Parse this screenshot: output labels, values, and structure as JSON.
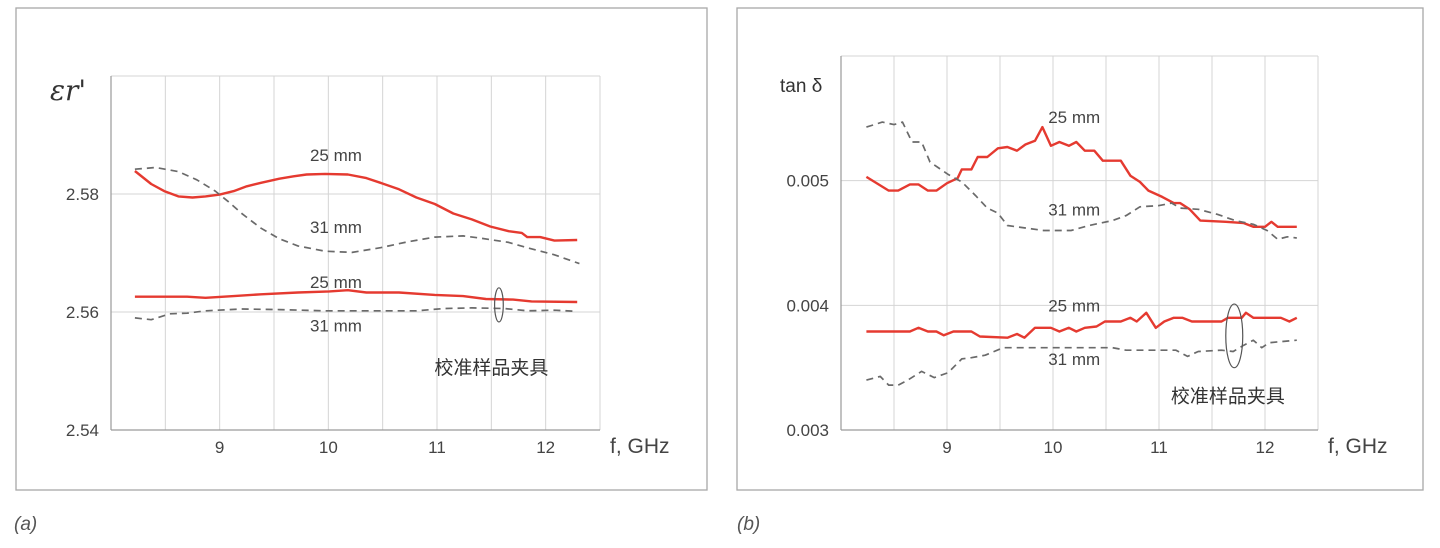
{
  "captions": [
    "(a)",
    "(b)"
  ],
  "colors": {
    "series_25mm": "#e53a30",
    "series_31mm": "#6a6a6a",
    "grid": "#d4d4d4",
    "frame": "#a8a8a8"
  },
  "chart_data": [
    {
      "type": "line",
      "ylabel": "εr'",
      "xlabel": "f, GHz",
      "xlim": [
        8.0,
        12.5
      ],
      "ylim": [
        2.54,
        2.6
      ],
      "xticks": [
        9,
        10,
        11,
        12
      ],
      "yticks": [
        "2.54",
        "2.56",
        "2.58"
      ],
      "grid": true,
      "series": [
        {
          "name": "25 mm",
          "style": "solid",
          "color": "#e53a30",
          "points": [
            [
              8.22,
              2.5839
            ],
            [
              8.37,
              2.5817
            ],
            [
              8.49,
              2.5805
            ],
            [
              8.62,
              2.5796
            ],
            [
              8.75,
              2.5794
            ],
            [
              8.87,
              2.5796
            ],
            [
              9.0,
              2.5799
            ],
            [
              9.13,
              2.5805
            ],
            [
              9.25,
              2.5813
            ],
            [
              9.38,
              2.5819
            ],
            [
              9.55,
              2.5826
            ],
            [
              9.68,
              2.583
            ],
            [
              9.8,
              2.5833
            ],
            [
              9.97,
              2.5834
            ],
            [
              10.18,
              2.5833
            ],
            [
              10.35,
              2.5827
            ],
            [
              10.48,
              2.5819
            ],
            [
              10.65,
              2.5808
            ],
            [
              10.81,
              2.5794
            ],
            [
              10.98,
              2.5783
            ],
            [
              11.15,
              2.5767
            ],
            [
              11.32,
              2.5757
            ],
            [
              11.49,
              2.5745
            ],
            [
              11.66,
              2.5737
            ],
            [
              11.78,
              2.5734
            ],
            [
              11.83,
              2.5727
            ],
            [
              11.95,
              2.5727
            ],
            [
              12.08,
              2.5721
            ],
            [
              12.29,
              2.5722
            ]
          ]
        },
        {
          "name": "31 mm",
          "style": "dashed",
          "color": "#6a6a6a",
          "points": [
            [
              8.22,
              2.5842
            ],
            [
              8.41,
              2.5845
            ],
            [
              8.62,
              2.5838
            ],
            [
              8.79,
              2.5824
            ],
            [
              8.96,
              2.5805
            ],
            [
              9.08,
              2.5787
            ],
            [
              9.21,
              2.5766
            ],
            [
              9.38,
              2.5742
            ],
            [
              9.55,
              2.5724
            ],
            [
              9.72,
              2.5712
            ],
            [
              9.97,
              2.5703
            ],
            [
              10.22,
              2.5701
            ],
            [
              10.48,
              2.5709
            ],
            [
              10.73,
              2.5719
            ],
            [
              10.98,
              2.5727
            ],
            [
              11.24,
              2.5729
            ],
            [
              11.41,
              2.5725
            ],
            [
              11.66,
              2.5718
            ],
            [
              11.83,
              2.5709
            ],
            [
              12.08,
              2.5697
            ],
            [
              12.31,
              2.5682
            ]
          ]
        },
        {
          "name": "25 mm",
          "style": "solid",
          "color": "#e53a30",
          "points": [
            [
              8.22,
              2.5626
            ],
            [
              8.7,
              2.5626
            ],
            [
              8.87,
              2.5624
            ],
            [
              9.13,
              2.5627
            ],
            [
              9.38,
              2.563
            ],
            [
              9.72,
              2.5633
            ],
            [
              10.01,
              2.5635
            ],
            [
              10.18,
              2.5637
            ],
            [
              10.35,
              2.5633
            ],
            [
              10.65,
              2.5633
            ],
            [
              10.98,
              2.5629
            ],
            [
              11.24,
              2.5627
            ],
            [
              11.45,
              2.5622
            ],
            [
              11.7,
              2.5621
            ],
            [
              11.87,
              2.5618
            ],
            [
              12.29,
              2.5617
            ]
          ]
        },
        {
          "name": "31 mm",
          "style": "dashed",
          "color": "#6a6a6a",
          "points": [
            [
              8.22,
              2.559
            ],
            [
              8.37,
              2.5587
            ],
            [
              8.54,
              2.5597
            ],
            [
              8.7,
              2.5598
            ],
            [
              8.87,
              2.5602
            ],
            [
              9.21,
              2.5605
            ],
            [
              9.55,
              2.5604
            ],
            [
              9.97,
              2.5602
            ],
            [
              10.81,
              2.5602
            ],
            [
              11.07,
              2.5606
            ],
            [
              11.32,
              2.5607
            ],
            [
              11.62,
              2.5606
            ],
            [
              11.83,
              2.5602
            ],
            [
              12.08,
              2.5603
            ],
            [
              12.29,
              2.5601
            ]
          ]
        }
      ],
      "annotations": [
        {
          "text": "25 mm",
          "at": [
            10.07,
            2.5866
          ]
        },
        {
          "text": "31 mm",
          "at": [
            10.07,
            2.5744
          ]
        },
        {
          "text": "25 mm",
          "at": [
            10.07,
            2.5651
          ]
        },
        {
          "text": "31 mm",
          "at": [
            10.07,
            2.5577
          ]
        },
        {
          "text": "校准样品夹具",
          "at": [
            11.5,
            2.5505
          ]
        }
      ],
      "ellipse": {
        "center": [
          11.57,
          2.5612
        ],
        "f_halfwidth": 0.04,
        "value_halfheight": 0.0029
      }
    },
    {
      "type": "line",
      "ylabel": "tan δ",
      "xlabel": "f, GHz",
      "xlim": [
        8.0,
        12.5
      ],
      "ylim": [
        0.003,
        0.006
      ],
      "xticks": [
        9,
        10,
        11,
        12
      ],
      "yticks": [
        "0.003",
        "0.004",
        "0.005"
      ],
      "grid": true,
      "series": [
        {
          "name": "25 mm",
          "style": "solid",
          "color": "#e53a30",
          "points": [
            [
              8.24,
              0.00503
            ],
            [
              8.45,
              0.00492
            ],
            [
              8.54,
              0.00492
            ],
            [
              8.65,
              0.00497
            ],
            [
              8.73,
              0.00497
            ],
            [
              8.82,
              0.00492
            ],
            [
              8.9,
              0.00492
            ],
            [
              9.0,
              0.00498
            ],
            [
              9.1,
              0.00502
            ],
            [
              9.14,
              0.00509
            ],
            [
              9.23,
              0.00509
            ],
            [
              9.29,
              0.00519
            ],
            [
              9.38,
              0.00519
            ],
            [
              9.48,
              0.00526
            ],
            [
              9.57,
              0.00527
            ],
            [
              9.66,
              0.00524
            ],
            [
              9.74,
              0.00529
            ],
            [
              9.83,
              0.00532
            ],
            [
              9.9,
              0.00543
            ],
            [
              9.98,
              0.00528
            ],
            [
              10.06,
              0.00531
            ],
            [
              10.15,
              0.00528
            ],
            [
              10.22,
              0.00531
            ],
            [
              10.3,
              0.00524
            ],
            [
              10.39,
              0.00524
            ],
            [
              10.47,
              0.00516
            ],
            [
              10.64,
              0.00516
            ],
            [
              10.73,
              0.00504
            ],
            [
              10.82,
              0.00499
            ],
            [
              10.9,
              0.00492
            ],
            [
              11.03,
              0.00487
            ],
            [
              11.14,
              0.00482
            ],
            [
              11.2,
              0.00482
            ],
            [
              11.29,
              0.00477
            ],
            [
              11.39,
              0.00468
            ],
            [
              11.63,
              0.00467
            ],
            [
              11.8,
              0.00466
            ],
            [
              11.89,
              0.00463
            ],
            [
              12.0,
              0.00463
            ],
            [
              12.06,
              0.00467
            ],
            [
              12.12,
              0.00463
            ],
            [
              12.3,
              0.00463
            ]
          ]
        },
        {
          "name": "31 mm",
          "style": "dashed",
          "color": "#6a6a6a",
          "points": [
            [
              8.24,
              0.00543
            ],
            [
              8.39,
              0.00547
            ],
            [
              8.5,
              0.00545
            ],
            [
              8.58,
              0.00547
            ],
            [
              8.67,
              0.00531
            ],
            [
              8.76,
              0.00531
            ],
            [
              8.84,
              0.00515
            ],
            [
              9.01,
              0.00505
            ],
            [
              9.14,
              0.00499
            ],
            [
              9.27,
              0.00488
            ],
            [
              9.38,
              0.00478
            ],
            [
              9.48,
              0.00474
            ],
            [
              9.57,
              0.00464
            ],
            [
              9.74,
              0.00462
            ],
            [
              9.91,
              0.0046
            ],
            [
              10.17,
              0.0046
            ],
            [
              10.34,
              0.00464
            ],
            [
              10.56,
              0.00468
            ],
            [
              10.69,
              0.00472
            ],
            [
              10.82,
              0.00479
            ],
            [
              11.0,
              0.0048
            ],
            [
              11.12,
              0.00482
            ],
            [
              11.2,
              0.00478
            ],
            [
              11.37,
              0.00477
            ],
            [
              11.55,
              0.00473
            ],
            [
              11.72,
              0.00468
            ],
            [
              11.89,
              0.00465
            ],
            [
              12.02,
              0.0046
            ],
            [
              12.12,
              0.00453
            ],
            [
              12.21,
              0.00455
            ],
            [
              12.3,
              0.00454
            ]
          ]
        },
        {
          "name": "25 mm",
          "style": "solid",
          "color": "#e53a30",
          "points": [
            [
              8.24,
              0.00379
            ],
            [
              8.65,
              0.00379
            ],
            [
              8.73,
              0.00382
            ],
            [
              8.82,
              0.00379
            ],
            [
              8.9,
              0.00379
            ],
            [
              8.97,
              0.00376
            ],
            [
              9.06,
              0.00379
            ],
            [
              9.23,
              0.00379
            ],
            [
              9.31,
              0.00375
            ],
            [
              9.57,
              0.00374
            ],
            [
              9.66,
              0.00377
            ],
            [
              9.73,
              0.00374
            ],
            [
              9.83,
              0.00382
            ],
            [
              9.98,
              0.00382
            ],
            [
              10.06,
              0.00379
            ],
            [
              10.15,
              0.00382
            ],
            [
              10.22,
              0.00379
            ],
            [
              10.3,
              0.00382
            ],
            [
              10.41,
              0.00383
            ],
            [
              10.49,
              0.00387
            ],
            [
              10.64,
              0.00387
            ],
            [
              10.73,
              0.0039
            ],
            [
              10.79,
              0.00387
            ],
            [
              10.88,
              0.00394
            ],
            [
              10.97,
              0.00382
            ],
            [
              11.05,
              0.00387
            ],
            [
              11.14,
              0.0039
            ],
            [
              11.22,
              0.0039
            ],
            [
              11.31,
              0.00387
            ],
            [
              11.59,
              0.00387
            ],
            [
              11.65,
              0.0039
            ],
            [
              11.78,
              0.0039
            ],
            [
              11.82,
              0.00394
            ],
            [
              11.89,
              0.0039
            ],
            [
              12.15,
              0.0039
            ],
            [
              12.23,
              0.00387
            ],
            [
              12.3,
              0.0039
            ]
          ]
        },
        {
          "name": "31 mm",
          "style": "dashed",
          "color": "#6a6a6a",
          "points": [
            [
              8.24,
              0.0034
            ],
            [
              8.37,
              0.00343
            ],
            [
              8.45,
              0.00336
            ],
            [
              8.54,
              0.00336
            ],
            [
              8.63,
              0.0034
            ],
            [
              8.76,
              0.00347
            ],
            [
              8.88,
              0.00342
            ],
            [
              9.01,
              0.00346
            ],
            [
              9.14,
              0.00357
            ],
            [
              9.23,
              0.00358
            ],
            [
              9.36,
              0.0036
            ],
            [
              9.53,
              0.00366
            ],
            [
              10.56,
              0.00366
            ],
            [
              10.69,
              0.00364
            ],
            [
              11.16,
              0.00364
            ],
            [
              11.27,
              0.00359
            ],
            [
              11.37,
              0.00363
            ],
            [
              11.59,
              0.00364
            ],
            [
              11.7,
              0.00363
            ],
            [
              11.8,
              0.00368
            ],
            [
              11.89,
              0.00372
            ],
            [
              11.97,
              0.00366
            ],
            [
              12.04,
              0.0037
            ],
            [
              12.3,
              0.00372
            ]
          ]
        }
      ],
      "annotations": [
        {
          "text": "25 mm",
          "at": [
            10.2,
            0.00551
          ]
        },
        {
          "text": "31 mm",
          "at": [
            10.2,
            0.00477
          ]
        },
        {
          "text": "25 mm",
          "at": [
            10.2,
            0.004
          ]
        },
        {
          "text": "31 mm",
          "at": [
            10.2,
            0.00357
          ]
        },
        {
          "text": "校准样品夹具",
          "at": [
            11.65,
            0.00327
          ]
        }
      ],
      "ellipse": {
        "center": [
          11.71,
          0.003755
        ],
        "f_halfwidth": 0.08,
        "value_halfheight": 0.000255
      }
    }
  ]
}
